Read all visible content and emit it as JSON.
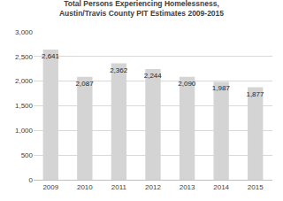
{
  "chart_data": {
    "type": "bar",
    "title": "Total Persons Experiencing Homelessness,\nAustin/Travis County PIT Estimates 2009-2015",
    "categories": [
      "2009",
      "2010",
      "2011",
      "2012",
      "2013",
      "2014",
      "2015"
    ],
    "values": [
      2641,
      2087,
      2362,
      2244,
      2090,
      1987,
      1877
    ],
    "value_labels": [
      "2,641",
      "2,087",
      "2,362",
      "2,244",
      "2,090",
      "1,987",
      "1,877"
    ],
    "color": "#d4d4d4",
    "ylim": [
      0,
      3000
    ],
    "yticks": [
      0,
      500,
      {
        "value": 1000,
        "label": "1,000"
      },
      {
        "value": 1500,
        "label": "1,500"
      },
      {
        "value": 2000,
        "label": "2,000"
      },
      {
        "value": 2500,
        "label": "2,500"
      },
      {
        "value": 3000,
        "label": "3,000"
      }
    ],
    "grid": true,
    "data_labels": true
  }
}
